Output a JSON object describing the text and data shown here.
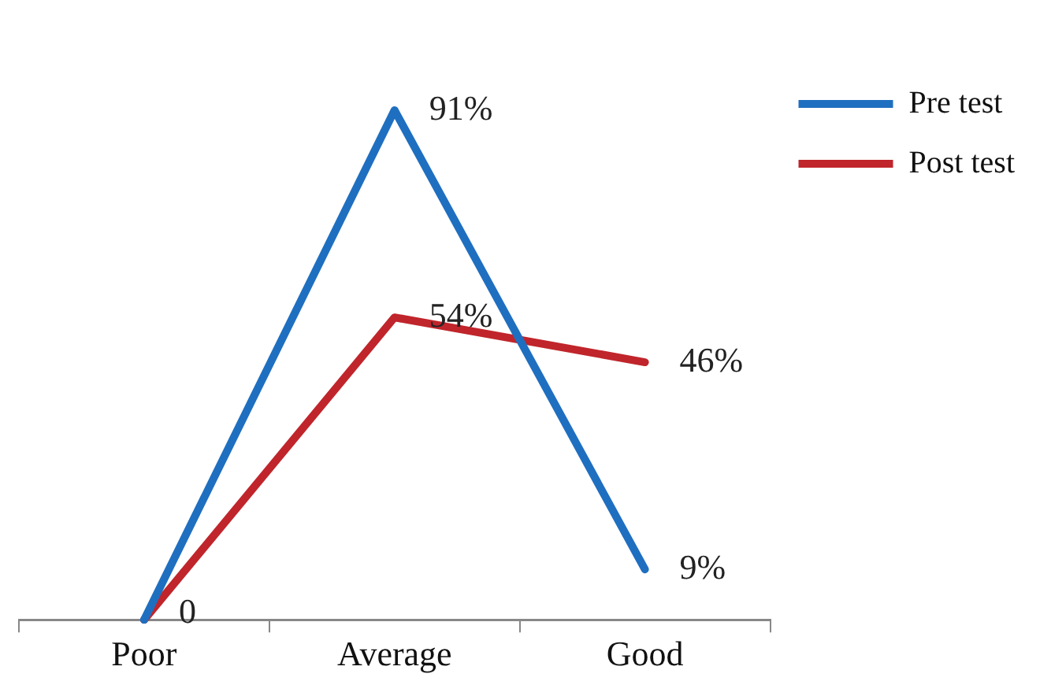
{
  "chart_data": {
    "type": "line",
    "categories": [
      "Poor",
      "Average",
      "Good"
    ],
    "series": [
      {
        "name": "Pre test",
        "color": "#1f6fc0",
        "values": [
          0,
          91,
          9
        ],
        "value_labels": [
          "0",
          "91%",
          "9%"
        ]
      },
      {
        "name": "Post test",
        "color": "#c0252b",
        "values": [
          0,
          54,
          46
        ],
        "value_labels": [
          null,
          "54%",
          "46%"
        ]
      }
    ],
    "legend": "top right",
    "grid": false,
    "marker": "none",
    "line_style": "solid"
  }
}
